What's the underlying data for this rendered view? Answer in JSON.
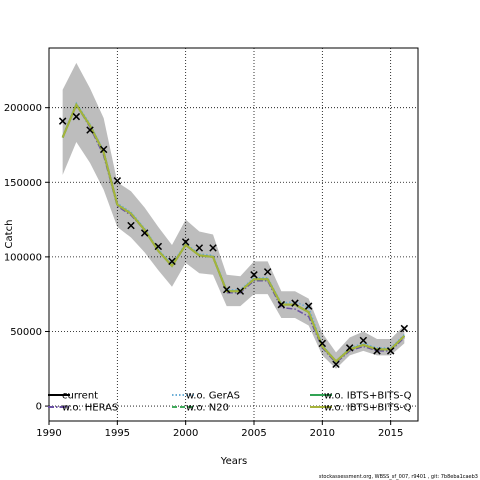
{
  "chart_data": {
    "type": "line",
    "title": "",
    "xlabel": "Years",
    "ylabel": "Catch",
    "xlim": [
      1990,
      2017
    ],
    "ylim": [
      -10000,
      240000
    ],
    "xticks": [
      1990,
      1995,
      2000,
      2005,
      2010,
      2015
    ],
    "yticks": [
      0,
      50000,
      100000,
      150000,
      200000
    ],
    "grid": true,
    "legend_position": "bottom",
    "footer": "stockassessment.org, WBSS_sf_007, r9401 , git: 7b8eba1caeb3",
    "x": [
      1991,
      1992,
      1993,
      1994,
      1995,
      1996,
      1997,
      1998,
      1999,
      2000,
      2001,
      2002,
      2003,
      2004,
      2005,
      2006,
      2007,
      2008,
      2009,
      2010,
      2011,
      2012,
      2013,
      2014,
      2015,
      2016
    ],
    "confidence_band": {
      "upper": [
        212000,
        230000,
        213000,
        193000,
        150000,
        144000,
        133000,
        120000,
        108000,
        125000,
        117000,
        115000,
        88000,
        87000,
        97000,
        97000,
        77000,
        77000,
        72000,
        49000,
        36000,
        46000,
        50000,
        45000,
        45000,
        54000
      ],
      "lower": [
        155000,
        177000,
        163000,
        145000,
        120000,
        113000,
        103000,
        91000,
        80000,
        96000,
        89000,
        88000,
        67000,
        67000,
        75000,
        75000,
        59000,
        59000,
        54000,
        34000,
        25000,
        34000,
        37000,
        34000,
        34000,
        42000
      ]
    },
    "observed": {
      "marker": "x",
      "values": [
        191000,
        194000,
        185000,
        172000,
        151000,
        121000,
        116000,
        107000,
        97000,
        110000,
        106000,
        106000,
        78000,
        77000,
        88000,
        90000,
        68000,
        69000,
        67000,
        42000,
        28000,
        39000,
        44000,
        37000,
        37000,
        52000
      ]
    },
    "series": [
      {
        "name": "current",
        "color": "#000000",
        "style": "solid",
        "values": [
          180000,
          202000,
          188000,
          170000,
          135000,
          129000,
          118000,
          104000,
          94000,
          108000,
          101000,
          100000,
          77000,
          77000,
          85000,
          85000,
          68000,
          68000,
          63000,
          40000,
          30000,
          38000,
          41000,
          38000,
          38000,
          47000
        ]
      },
      {
        "name": "w.o. HERAS",
        "color": "#6a51a3",
        "style": "dashdot",
        "values": [
          180000,
          202000,
          187000,
          168000,
          134000,
          128000,
          118000,
          104000,
          94000,
          108000,
          101000,
          100000,
          76000,
          76000,
          84000,
          84000,
          66000,
          65000,
          60000,
          39000,
          29000,
          37000,
          40000,
          37000,
          37000,
          46000
        ]
      },
      {
        "name": "w.o. GerAS",
        "color": "#6baed6",
        "style": "dotted",
        "values": [
          181000,
          203000,
          189000,
          171000,
          136000,
          130000,
          119000,
          105000,
          95000,
          109000,
          102000,
          101000,
          78000,
          78000,
          86000,
          86000,
          69000,
          70000,
          66000,
          41000,
          30000,
          39000,
          42000,
          39000,
          39000,
          48000
        ]
      },
      {
        "name": "w.o. N20",
        "color": "#41ab5d",
        "style": "dashed",
        "values": [
          180000,
          202000,
          188000,
          170000,
          135000,
          129000,
          118000,
          104000,
          94000,
          108000,
          101000,
          100000,
          77000,
          77000,
          85000,
          85000,
          68000,
          68000,
          63000,
          40000,
          30000,
          38000,
          41000,
          38000,
          38000,
          47000
        ]
      },
      {
        "name": "w.o. IBTS+BITS-Q",
        "color": "#31a354",
        "style": "solid",
        "values": [
          180000,
          202000,
          188000,
          170000,
          135000,
          129000,
          118000,
          104000,
          94000,
          108000,
          101000,
          100000,
          77000,
          77000,
          85000,
          85000,
          68000,
          68000,
          63000,
          40000,
          30000,
          38000,
          41000,
          38000,
          38000,
          47000
        ]
      },
      {
        "name": "w.o. IBTS+BITS-Q",
        "color": "#a6b33a",
        "style": "solid",
        "values": [
          180000,
          202000,
          188000,
          170000,
          135000,
          129000,
          118000,
          104000,
          94000,
          108000,
          101000,
          100000,
          77000,
          77000,
          85000,
          85000,
          68000,
          68000,
          63000,
          40000,
          30000,
          38000,
          41000,
          38000,
          38000,
          47000
        ]
      }
    ]
  }
}
